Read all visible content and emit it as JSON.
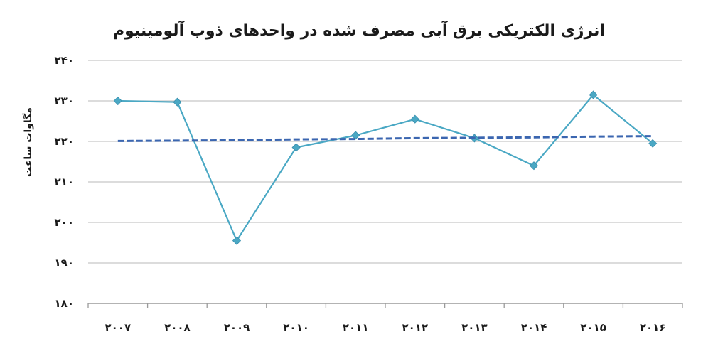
{
  "chart_data": {
    "type": "line",
    "title": "انرژی الکتریکی برق آبی مصرف شده در واحدهای ذوب آلومینیوم",
    "ylabel": "مگاوات ساعت",
    "xlabel": "",
    "categories": [
      "۲۰۰۷",
      "۲۰۰۸",
      "۲۰۰۹",
      "۲۰۱۰",
      "۲۰۱۱",
      "۲۰۱۲",
      "۲۰۱۳",
      "۲۰۱۴",
      "۲۰۱۵",
      "۲۰۱۶"
    ],
    "series": [
      {
        "values": [
          230,
          229.7,
          195.5,
          218.5,
          221.5,
          225.5,
          220.8,
          214,
          231.5,
          219.5
        ],
        "color": "#4aa8c4",
        "style": "solid",
        "marker": "diamond"
      },
      {
        "values": [
          220.1,
          220.2,
          220.3,
          220.5,
          220.6,
          220.8,
          220.9,
          221.0,
          221.2,
          221.3
        ],
        "color": "#3b66b0",
        "style": "dashed"
      }
    ],
    "ylim": [
      180,
      240
    ],
    "yticks": [
      180,
      190,
      200,
      210,
      220,
      230,
      240
    ],
    "ytick_labels": [
      "۱۸۰",
      "۱۹۰",
      "۲۰۰",
      "۲۱۰",
      "۲۲۰",
      "۲۳۰",
      "۲۴۰"
    ],
    "grid": true,
    "legend": "none"
  }
}
